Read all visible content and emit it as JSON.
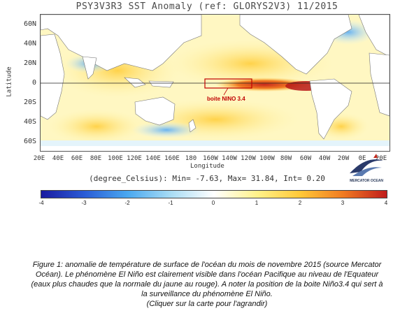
{
  "map": {
    "title": "PSY3V3R3 SST Anomaly (ref: GLORYS2V3) 11/2015",
    "y_ticks": [
      "60N",
      "40N",
      "20N",
      "0",
      "20S",
      "40S",
      "60S"
    ],
    "x_ticks": [
      "20E",
      "40E",
      "60E",
      "80E",
      "100E",
      "120E",
      "140E",
      "160E",
      "180",
      "160W",
      "140W",
      "120W",
      "100W",
      "80W",
      "60W",
      "40W",
      "20W",
      "0E",
      "20E"
    ],
    "ylabel": "Latitude",
    "xlabel": "Longitude",
    "stats": "(degree_Celsius): Min= -7.63, Max= 31.84, Int= 0.20",
    "annotation": "boite NINO 3.4"
  },
  "colorbar": {
    "ticks": [
      "-4",
      "-3",
      "-2",
      "-1",
      "0",
      "1",
      "2",
      "3",
      "4"
    ],
    "colors": [
      "#1a1aa0",
      "#2a5cd6",
      "#4aa8f0",
      "#a8dcf4",
      "#ffffff",
      "#fff28a",
      "#ffc838",
      "#f07a22",
      "#c01c1c"
    ]
  },
  "logo": {
    "name": "mercator-ocean-logo",
    "text": "MERCATOR OCEAN"
  },
  "caption": {
    "line1": "Figure 1: anomalie de température de surface de l'océan du mois de novembre 2015 (source Mercator",
    "line2": "Océan). Le phénomène El Niño est clairement visible dans l'océan Pacifique au niveau de l'Equateur",
    "line3": "(eaux plus chaudes que la normale du jaune au rouge). A noter la position de la boite Niño3.4 qui sert à",
    "line4": "la surveillance du phénomène El Niño.",
    "line5": "(Cliquer sur la carte pour l'agrandir)"
  }
}
